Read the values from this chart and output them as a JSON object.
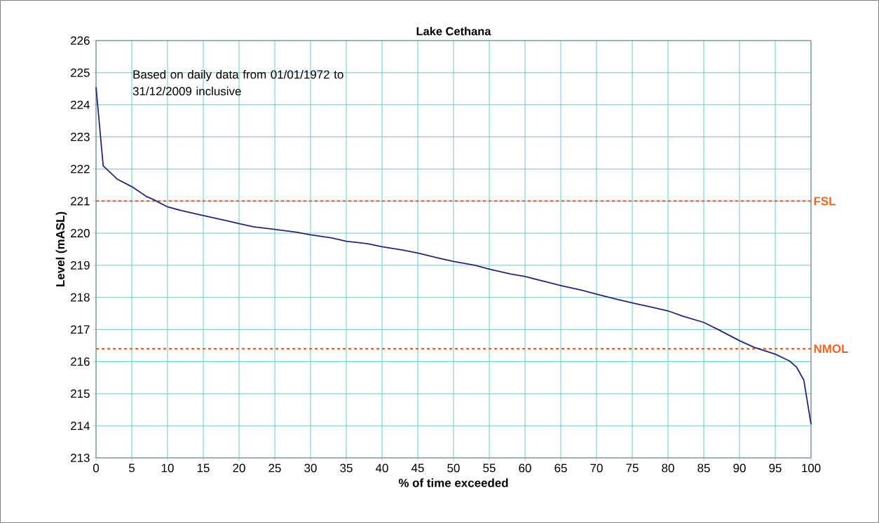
{
  "chart_data": {
    "type": "line",
    "title": "Lake Cethana",
    "xlabel": "% of time exceeded",
    "ylabel": "Level (mASL)",
    "annotations": [
      "Based on daily data from 01/01/1972 to 31/12/2009 inclusive"
    ],
    "x": [
      0,
      1,
      3,
      5,
      7,
      8,
      10,
      12,
      15,
      18,
      20,
      22,
      25,
      28,
      30,
      33,
      35,
      38,
      40,
      43,
      45,
      48,
      50,
      53,
      55,
      58,
      60,
      63,
      65,
      68,
      70,
      73,
      75,
      78,
      80,
      82,
      85,
      87,
      90,
      92,
      95,
      97,
      98,
      99,
      100
    ],
    "series": [
      {
        "color": "#262673",
        "values": [
          224.55,
          222.1,
          221.68,
          221.45,
          221.15,
          221.05,
          220.82,
          220.7,
          220.55,
          220.4,
          220.3,
          220.2,
          220.12,
          220.03,
          219.95,
          219.85,
          219.75,
          219.67,
          219.58,
          219.47,
          219.38,
          219.22,
          219.12,
          219.0,
          218.88,
          218.73,
          218.65,
          218.48,
          218.37,
          218.22,
          218.1,
          217.93,
          217.83,
          217.68,
          217.58,
          217.42,
          217.22,
          217.0,
          216.65,
          216.45,
          216.23,
          216.02,
          215.82,
          215.42,
          214.05
        ]
      }
    ],
    "xlim": [
      0,
      100
    ],
    "ylim": [
      213,
      226
    ],
    "xticks": [
      0,
      5,
      10,
      15,
      20,
      25,
      30,
      35,
      40,
      45,
      50,
      55,
      60,
      65,
      70,
      75,
      80,
      85,
      90,
      95,
      100
    ],
    "yticks": [
      213,
      214,
      215,
      216,
      217,
      218,
      219,
      220,
      221,
      222,
      223,
      224,
      225,
      226
    ],
    "ref_lines": [
      {
        "axis": "y",
        "value": 221,
        "label": "FSL",
        "color": "#f26522",
        "line_style": "dashed"
      },
      {
        "axis": "y",
        "value": 216.4,
        "label": "NMOL",
        "color": "#f26522",
        "line_style": "dashed"
      }
    ],
    "grid": true,
    "marker": "none",
    "line_style": "solid"
  }
}
